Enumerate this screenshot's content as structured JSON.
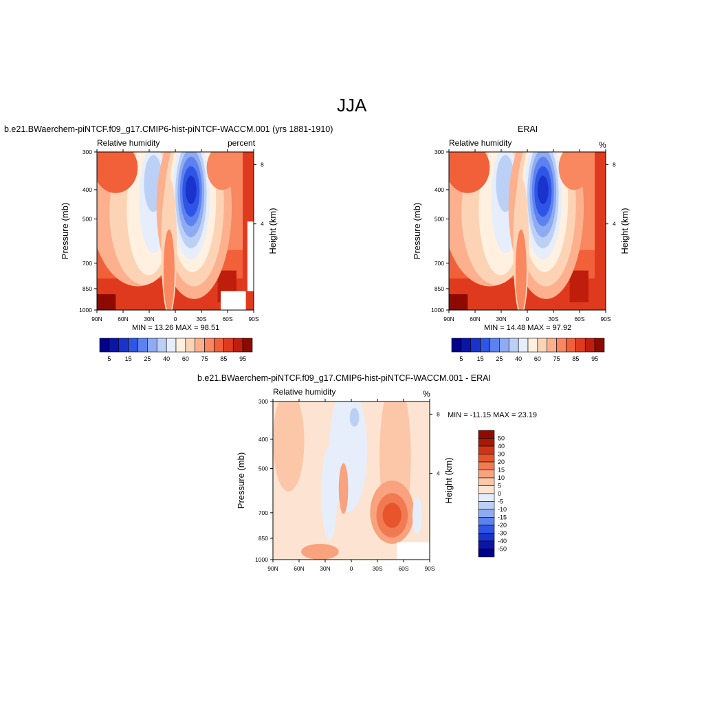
{
  "figure_title": "JJA",
  "colors": {
    "rh_levels": [
      "#00008a",
      "#0c14a8",
      "#1a33cc",
      "#2e55e6",
      "#5c82f0",
      "#8eaaf2",
      "#bcd0f6",
      "#e6eefb",
      "#fff0e0",
      "#fdd3b6",
      "#fcb08e",
      "#f98760",
      "#f2603a",
      "#e03a1e",
      "#bf1e0c",
      "#8e0a00"
    ],
    "diff_levels": [
      "#00008a",
      "#0c14a8",
      "#1a33cc",
      "#2e55e6",
      "#5c82f0",
      "#8eaaf2",
      "#bcd0f6",
      "#e6eefb",
      "#fde4d2",
      "#fcc7a9",
      "#f8a27e",
      "#f27a52",
      "#e8552c",
      "#d03416",
      "#a61a06",
      "#8e0a00"
    ]
  },
  "chart_data": [
    {
      "type": "heatmap",
      "title": "b.e21.BWaerchem-piNTCF.f09_g17.CMIP6-hist-piNTCF-WACCM.001 (yrs 1881-1910)",
      "left_label": "Relative humidity",
      "right_label": "percent",
      "ylabel": "Pressure (mb)",
      "y2label": "Height (km)",
      "x_ticks": [
        "90N",
        "60N",
        "30N",
        "0",
        "30S",
        "60S",
        "90S"
      ],
      "y_ticks": [
        "300",
        "400",
        "500",
        "700",
        "850",
        "1000"
      ],
      "y2_ticks": [
        "8",
        "4"
      ],
      "stats": "MIN =  13.26  MAX =  98.51",
      "colorbar_labels": [
        "5",
        "15",
        "25",
        "40",
        "60",
        "75",
        "85",
        "95"
      ]
    },
    {
      "type": "heatmap",
      "title": "ERAI",
      "left_label": "Relative humidity",
      "right_label": "%",
      "ylabel": "Pressure (mb)",
      "y2label": "Height (km)",
      "x_ticks": [
        "90N",
        "60N",
        "30N",
        "0",
        "30S",
        "60S",
        "90S"
      ],
      "y_ticks": [
        "300",
        "400",
        "500",
        "700",
        "850",
        "1000"
      ],
      "y2_ticks": [
        "8",
        "4"
      ],
      "stats": "MIN =  14.48  MAX =  97.92",
      "colorbar_labels": [
        "5",
        "15",
        "25",
        "40",
        "60",
        "75",
        "85",
        "95"
      ]
    },
    {
      "type": "heatmap",
      "title": "b.e21.BWaerchem-piNTCF.f09_g17.CMIP6-hist-piNTCF-WACCM.001 - ERAI",
      "left_label": "Relative humidity",
      "right_label": "%",
      "ylabel": "Pressure (mb)",
      "y2label": "Height (km)",
      "x_ticks": [
        "90N",
        "60N",
        "30N",
        "0",
        "30S",
        "60S",
        "90S"
      ],
      "y_ticks": [
        "300",
        "400",
        "500",
        "700",
        "850",
        "1000"
      ],
      "y2_ticks": [
        "8",
        "4"
      ],
      "stats": "MIN = -11.15  MAX =  23.19",
      "colorbar_labels": [
        "50",
        "40",
        "30",
        "20",
        "15",
        "10",
        "5",
        "0",
        "-5",
        "-10",
        "-15",
        "-20",
        "-30",
        "-40",
        "-50"
      ]
    }
  ]
}
